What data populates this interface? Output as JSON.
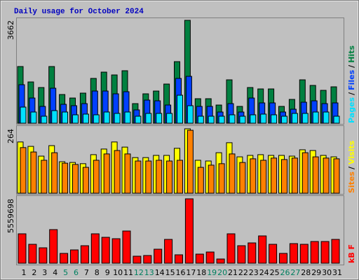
{
  "chart_data": [
    {
      "type": "bar",
      "title": "Daily usage for October 2024",
      "legend_separator": "/",
      "ylim": [
        0,
        3662
      ],
      "yticks": [
        3662
      ],
      "series": [
        {
          "name": "Hits",
          "color": "#008040",
          "values": [
            2017,
            1469,
            1270,
            2017,
            1021,
            896,
            1071,
            1594,
            1818,
            1718,
            1868,
            697,
            1046,
            1145,
            1394,
            2191,
            3662,
            872,
            872,
            647,
            1544,
            598,
            1270,
            1220,
            1220,
            598,
            847,
            1544,
            1345,
            1170,
            1295
          ]
        },
        {
          "name": "Files",
          "color": "#0040ff",
          "values": [
            1370,
            896,
            598,
            1245,
            672,
            623,
            697,
            1145,
            1145,
            1046,
            1121,
            473,
            822,
            797,
            647,
            1594,
            1668,
            598,
            598,
            398,
            697,
            398,
            896,
            722,
            722,
            398,
            498,
            747,
            797,
            697,
            722
          ]
        },
        {
          "name": "Pages",
          "color": "#00e0ff",
          "values": [
            573,
            398,
            249,
            448,
            398,
            299,
            324,
            299,
            398,
            349,
            398,
            249,
            349,
            349,
            349,
            996,
            623,
            249,
            249,
            249,
            299,
            249,
            299,
            324,
            299,
            249,
            349,
            349,
            398,
            398,
            249
          ]
        }
      ]
    },
    {
      "type": "bar",
      "legend_separator": "/",
      "ylim": [
        0,
        264
      ],
      "yticks": [
        264
      ],
      "series": [
        {
          "name": "Visits",
          "color": "#ffff00",
          "values": [
            210,
            192,
            152,
            195,
            129,
            126,
            121,
            158,
            181,
            210,
            189,
            146,
            146,
            155,
            155,
            184,
            264,
            135,
            132,
            166,
            207,
            149,
            155,
            158,
            155,
            155,
            152,
            178,
            175,
            155,
            149
          ]
        },
        {
          "name": "Sites",
          "color": "#ff8000",
          "values": [
            187,
            169,
            135,
            166,
            123,
            118,
            106,
            135,
            161,
            175,
            161,
            132,
            132,
            135,
            132,
            135,
            258,
            106,
            115,
            121,
            161,
            126,
            141,
            135,
            144,
            138,
            144,
            166,
            149,
            144,
            141
          ]
        }
      ]
    },
    {
      "type": "bar",
      "ylim": [
        0,
        5559698
      ],
      "yticks": [
        5559698
      ],
      "categories": [
        "1",
        "2",
        "3",
        "4",
        "5",
        "6",
        "7",
        "8",
        "9",
        "10",
        "11",
        "12",
        "13",
        "14",
        "15",
        "16",
        "17",
        "18",
        "19",
        "20",
        "21",
        "22",
        "23",
        "24",
        "25",
        "26",
        "27",
        "28",
        "29",
        "30",
        "31"
      ],
      "category_colors": [
        "#000000",
        "#000000",
        "#000000",
        "#000000",
        "#008060",
        "#008060",
        "#000000",
        "#000000",
        "#000000",
        "#000000",
        "#000000",
        "#008060",
        "#008060",
        "#000000",
        "#000000",
        "#000000",
        "#000000",
        "#000000",
        "#008060",
        "#008060",
        "#000000",
        "#000000",
        "#000000",
        "#000000",
        "#000000",
        "#008060",
        "#008060",
        "#000000",
        "#000000",
        "#000000",
        "#000000"
      ],
      "series": [
        {
          "name": "kB F",
          "color": "#ff0000",
          "values": [
            2538144,
            1631664,
            1329504,
            2900736,
            846048,
            1148208,
            1510800,
            2538144,
            2235984,
            2115120,
            2779872,
            604320,
            664752,
            1208640,
            2054688,
            725184,
            5559698,
            785616,
            966912,
            362592,
            2538144,
            1510800,
            1752528,
            2356848,
            1631664,
            846048,
            1692096,
            1631664,
            1873392,
            1873392,
            2054688
          ]
        }
      ]
    }
  ]
}
